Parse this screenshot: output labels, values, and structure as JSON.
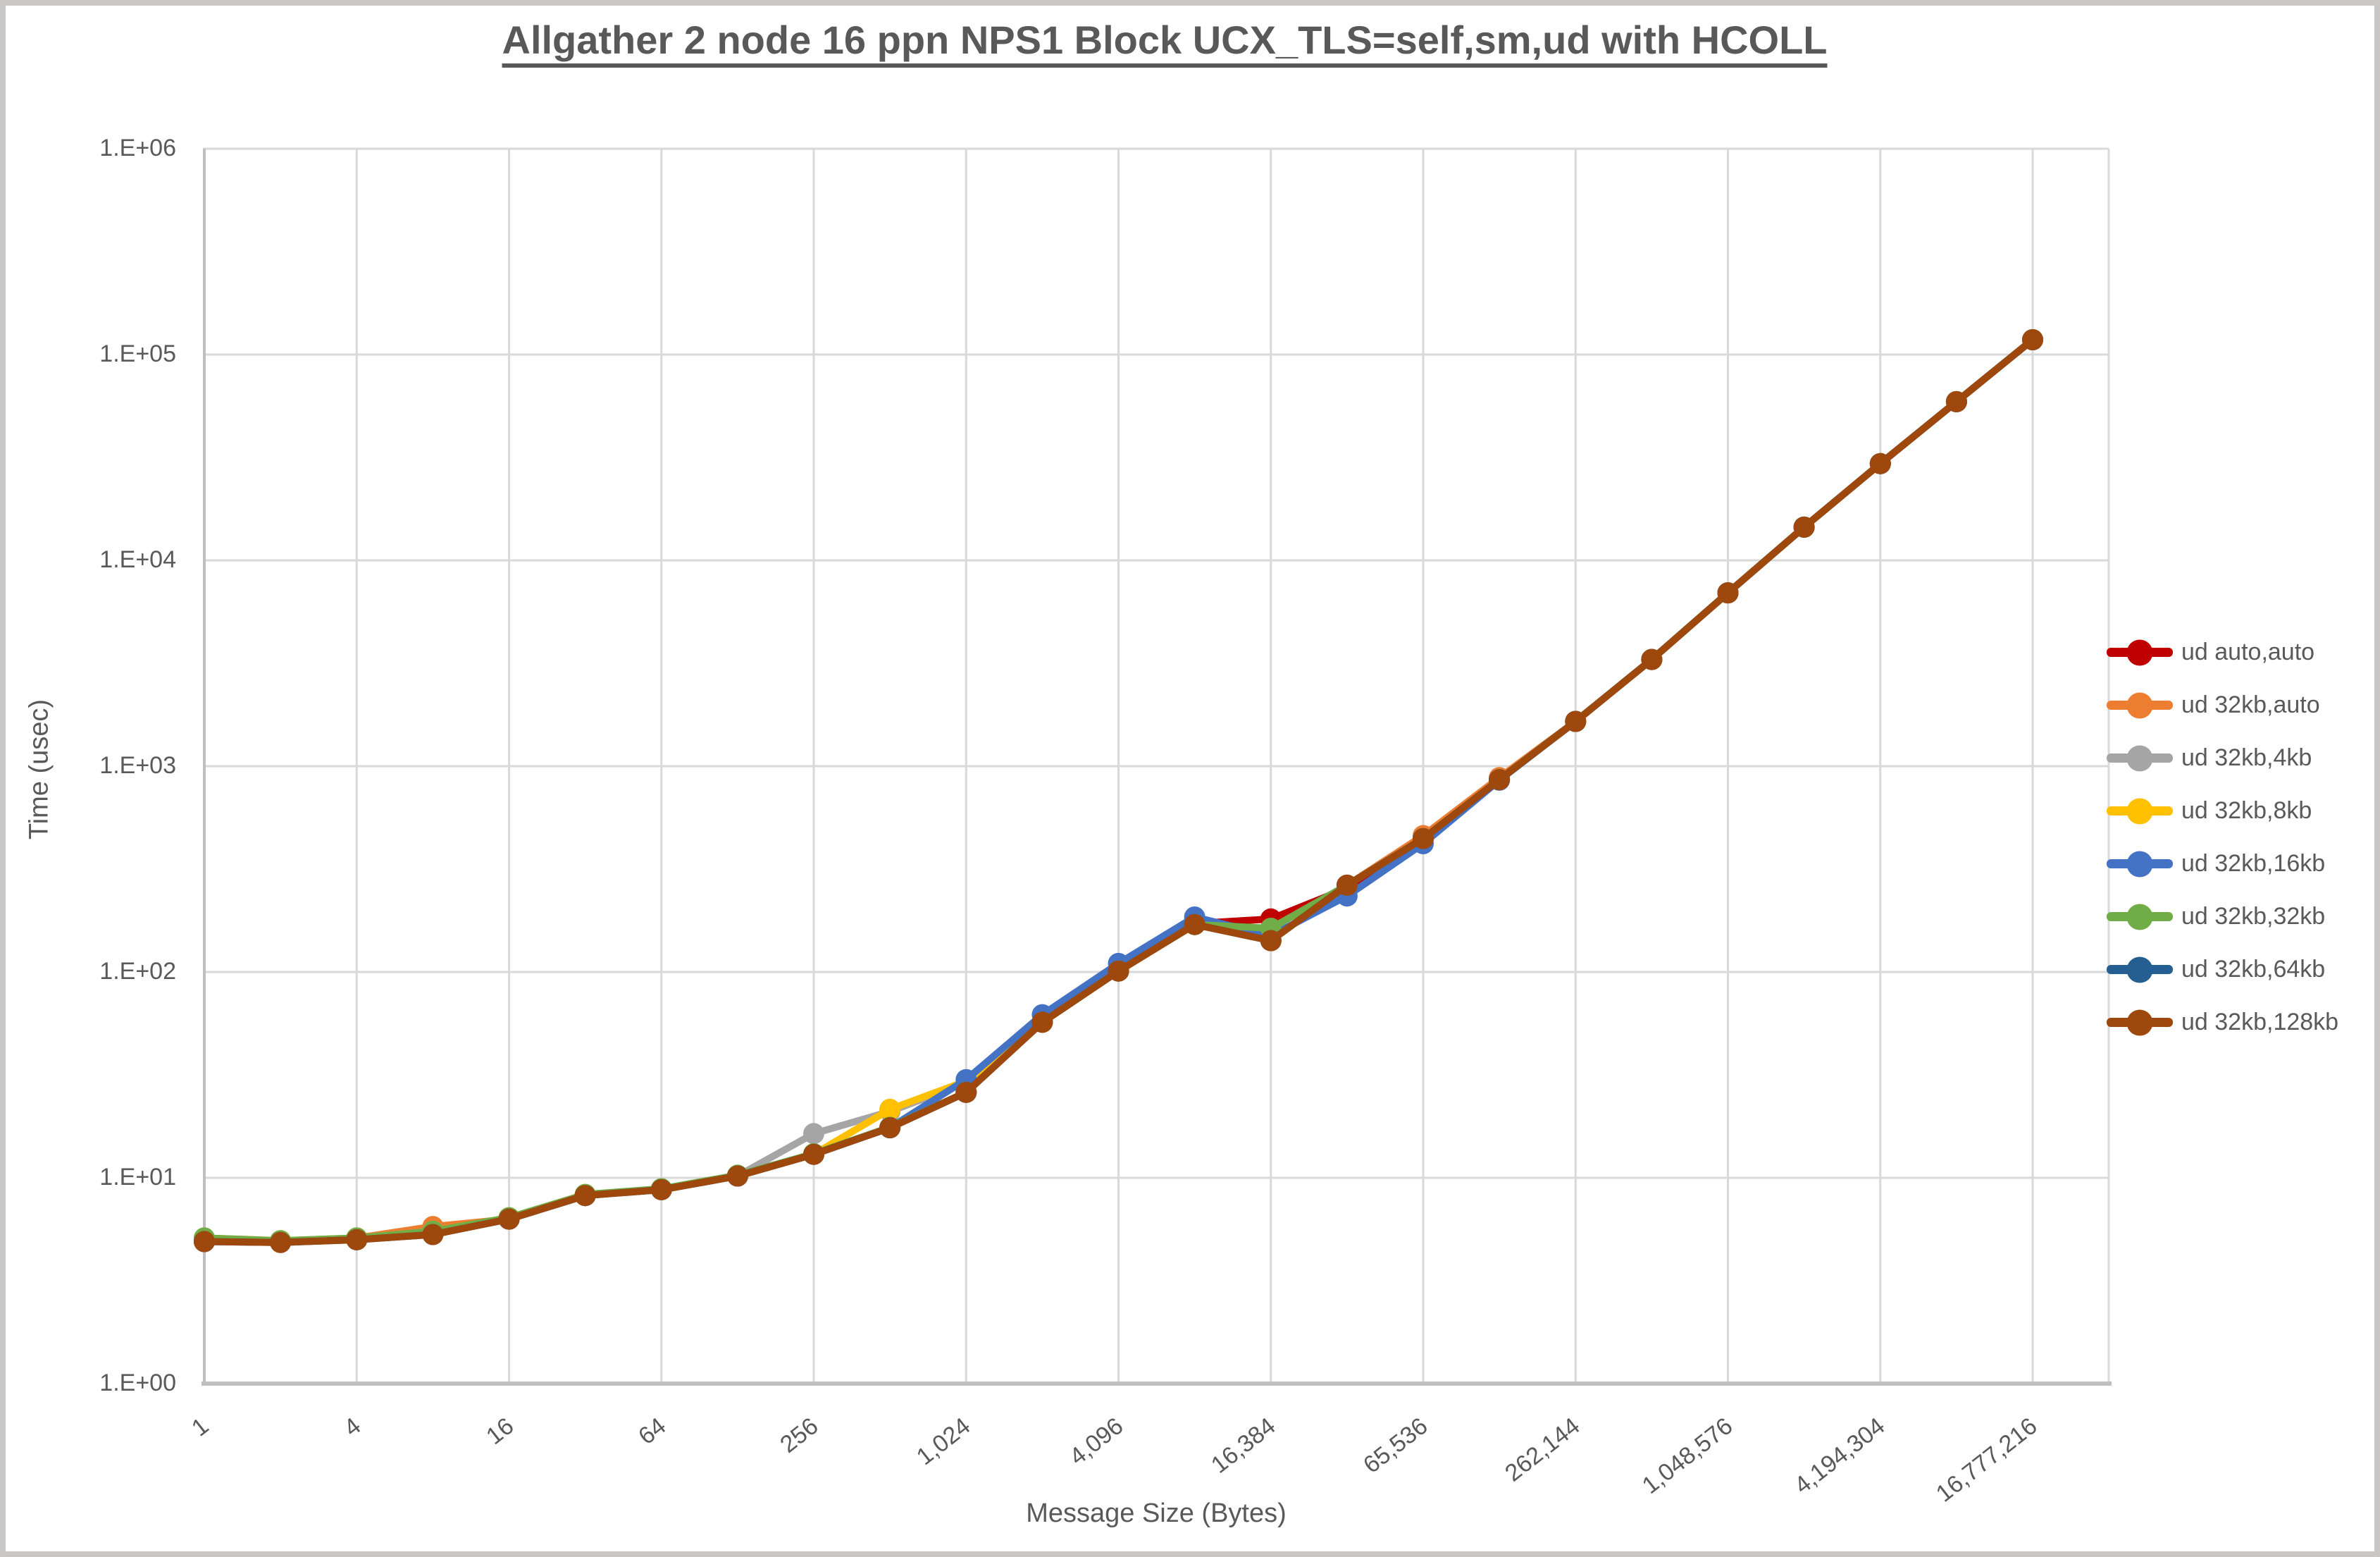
{
  "title": {
    "text": "Allgather 2 node 16 ppn NPS1 Block UCX_TLS=self,sm,ud with HCOLL"
  },
  "colors": {
    "title_text": "#595959",
    "axis_text": "#595959",
    "gridline": "#d9d9d9",
    "axis_line": "#bfbfbf",
    "frame": "#c9c7c5"
  },
  "chart_data": {
    "type": "line",
    "title": "Allgather 2 node 16 ppn NPS1 Block UCX_TLS=self,sm,ud with HCOLL",
    "grid": true,
    "legend_position": "right",
    "marker": "circle",
    "x_axis": {
      "title": "Message Size (Bytes)",
      "scale": "log",
      "tick_labels": [
        "1",
        "4",
        "16",
        "64",
        "256",
        "1,024",
        "4,096",
        "16,384",
        "65,536",
        "262,144",
        "1,048,576",
        "4,194,304",
        "16,777,216"
      ]
    },
    "y_axis": {
      "title": "Time (usec)",
      "scale": "log",
      "min": 1,
      "max": 1000000,
      "tick_labels": [
        "1.E+00",
        "1.E+01",
        "1.E+02",
        "1.E+03",
        "1.E+04",
        "1.E+05",
        "1.E+06"
      ]
    },
    "x": [
      1,
      2,
      4,
      8,
      16,
      32,
      64,
      128,
      256,
      512,
      1024,
      2048,
      4096,
      8192,
      16384,
      32768,
      65536,
      131072,
      262144,
      524288,
      1048576,
      2097152,
      4194304,
      8388608,
      16777216
    ],
    "series": [
      {
        "name": "ud auto,auto",
        "color": "#C00000",
        "values": [
          4.9,
          4.9,
          5.0,
          5.4,
          6.3,
          8.2,
          8.8,
          10.2,
          13.0,
          17.5,
          26,
          57,
          101,
          172,
          181,
          255,
          450,
          860,
          1650,
          3300,
          6950,
          14500,
          29500,
          59000,
          118000
        ]
      },
      {
        "name": "ud 32kb,auto",
        "color": "#ED7D31",
        "values": [
          5.0,
          4.9,
          5.1,
          5.8,
          6.3,
          8.2,
          8.8,
          10.2,
          13.0,
          17.5,
          26,
          57,
          101,
          170,
          142,
          264,
          460,
          880,
          1650,
          3300,
          6950,
          14500,
          29500,
          59000,
          118000
        ]
      },
      {
        "name": "ud 32kb,4kb",
        "color": "#A5A5A5",
        "values": [
          5.0,
          4.9,
          5.1,
          5.5,
          6.3,
          8.2,
          8.8,
          10.2,
          16.4,
          21.0,
          29,
          57,
          101,
          170,
          142,
          264,
          445,
          860,
          1650,
          3300,
          6950,
          14500,
          29500,
          59000,
          118000
        ]
      },
      {
        "name": "ud 32kb,8kb",
        "color": "#FFC000",
        "values": [
          5.1,
          4.95,
          5.1,
          5.5,
          6.4,
          8.3,
          8.8,
          10.2,
          13.0,
          21.5,
          29.5,
          57,
          101,
          170,
          142,
          264,
          445,
          860,
          1650,
          3300,
          6950,
          14500,
          29500,
          59000,
          118000
        ]
      },
      {
        "name": "ud 32kb,16kb",
        "color": "#4472C4",
        "values": [
          4.95,
          4.9,
          5.05,
          5.4,
          6.3,
          8.2,
          8.8,
          10.2,
          13.0,
          17.5,
          30,
          62,
          110,
          185,
          150,
          234,
          420,
          855,
          1650,
          3300,
          6950,
          14500,
          29500,
          59000,
          118000
        ]
      },
      {
        "name": "ud 32kb,32kb",
        "color": "#70AD47",
        "values": [
          5.1,
          4.95,
          5.1,
          5.5,
          6.4,
          8.3,
          8.85,
          10.3,
          13.1,
          17.6,
          26,
          57,
          101,
          170,
          163,
          264,
          445,
          860,
          1650,
          3300,
          6950,
          14500,
          29500,
          59000,
          118000
        ]
      },
      {
        "name": "ud 32kb,64kb",
        "color": "#255E91",
        "values": [
          4.9,
          4.85,
          5.0,
          5.3,
          6.3,
          8.2,
          8.75,
          10.2,
          13.0,
          17.5,
          26,
          57,
          101,
          170,
          142,
          264,
          445,
          860,
          1650,
          3300,
          6950,
          14500,
          29500,
          59000,
          118000
        ]
      },
      {
        "name": "ud 32kb,128kb",
        "color": "#9E480E",
        "values": [
          4.9,
          4.85,
          5.0,
          5.3,
          6.3,
          8.2,
          8.75,
          10.2,
          13.0,
          17.5,
          26,
          57,
          101,
          170,
          142,
          264,
          445,
          860,
          1650,
          3300,
          6950,
          14500,
          29500,
          59000,
          118000
        ]
      }
    ]
  }
}
